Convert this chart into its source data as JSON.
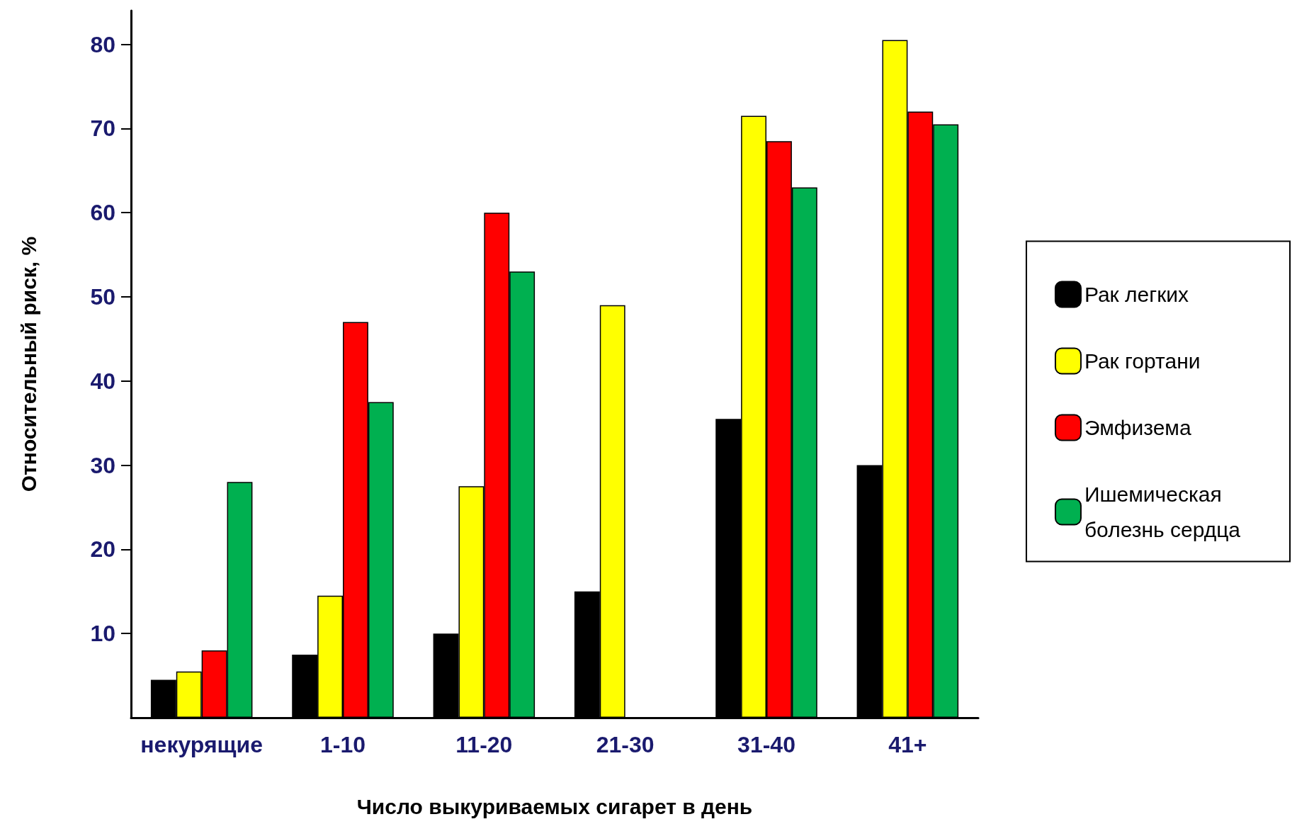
{
  "chart_data": {
    "type": "bar",
    "xlabel": "Число выкуриваемых сигарет в день",
    "ylabel": "Относительный риск, %",
    "categories": [
      "некурящие",
      "1-10",
      "11-20",
      "21-30",
      "31-40",
      "41+"
    ],
    "series": [
      {
        "name": "Рак легких",
        "color": "#000000",
        "values": [
          4.5,
          7.5,
          10,
          15,
          35.5,
          30
        ]
      },
      {
        "name": "Рак гортани",
        "color": "#ffff00",
        "values": [
          5.5,
          14.5,
          27.5,
          49,
          71.5,
          80.5
        ]
      },
      {
        "name": "Эмфизема",
        "color": "#ff0000",
        "values": [
          8,
          47,
          60,
          null,
          68.5,
          72
        ]
      },
      {
        "name": "Ишемическая\nболезнь сердца",
        "color": "#00b050",
        "values": [
          28,
          37.5,
          53,
          null,
          63,
          70.5
        ]
      }
    ],
    "ylim": [
      0,
      84
    ],
    "yticks": [
      10,
      20,
      30,
      40,
      50,
      60,
      70,
      80
    ],
    "grid": false,
    "legend": "right"
  }
}
